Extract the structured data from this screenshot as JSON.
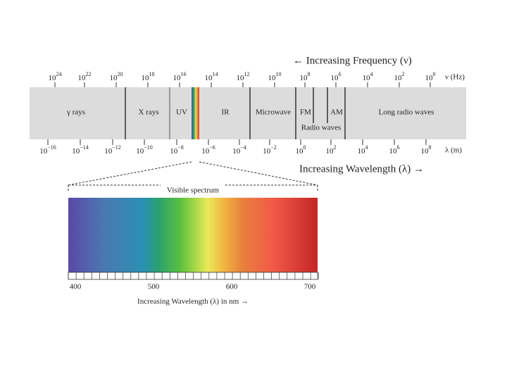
{
  "header": {
    "frequency_title": "← Increasing Frequency (ν)",
    "frequency_unit": "ν (Hz)",
    "wavelength_unit": "λ (m)",
    "wavelength_title": "Increasing Wavelength (λ) →"
  },
  "frequency_ticks": [
    {
      "base": "10",
      "exponent": "24"
    },
    {
      "base": "10",
      "exponent": "22"
    },
    {
      "base": "10",
      "exponent": "20"
    },
    {
      "base": "10",
      "exponent": "18"
    },
    {
      "base": "10",
      "exponent": "16"
    },
    {
      "base": "10",
      "exponent": "14"
    },
    {
      "base": "10",
      "exponent": "12"
    },
    {
      "base": "10",
      "exponent": "10"
    },
    {
      "base": "10",
      "exponent": "8"
    },
    {
      "base": "10",
      "exponent": "6"
    },
    {
      "base": "10",
      "exponent": "4"
    },
    {
      "base": "10",
      "exponent": "2"
    },
    {
      "base": "10",
      "exponent": "0"
    }
  ],
  "wavelength_ticks": [
    {
      "base": "10",
      "exponent": "−16"
    },
    {
      "base": "10",
      "exponent": "−14"
    },
    {
      "base": "10",
      "exponent": "−12"
    },
    {
      "base": "10",
      "exponent": "−10"
    },
    {
      "base": "10",
      "exponent": "−8"
    },
    {
      "base": "10",
      "exponent": "−6"
    },
    {
      "base": "10",
      "exponent": "−4"
    },
    {
      "base": "10",
      "exponent": "−2"
    },
    {
      "base": "10",
      "exponent": "0"
    },
    {
      "base": "10",
      "exponent": "2"
    },
    {
      "base": "10",
      "exponent": "4"
    },
    {
      "base": "10",
      "exponent": "6"
    },
    {
      "base": "10",
      "exponent": "8"
    }
  ],
  "bands": [
    "γ rays",
    "X rays",
    "UV",
    "IR",
    "Microwave",
    "FM",
    "AM",
    "Long radio waves"
  ],
  "radio_label": "Radio waves",
  "visible": {
    "title": "Visible spectrum",
    "ticks": [
      "400",
      "500",
      "600",
      "700"
    ],
    "caption": "Increasing Wavelength (λ) in nm →"
  }
}
